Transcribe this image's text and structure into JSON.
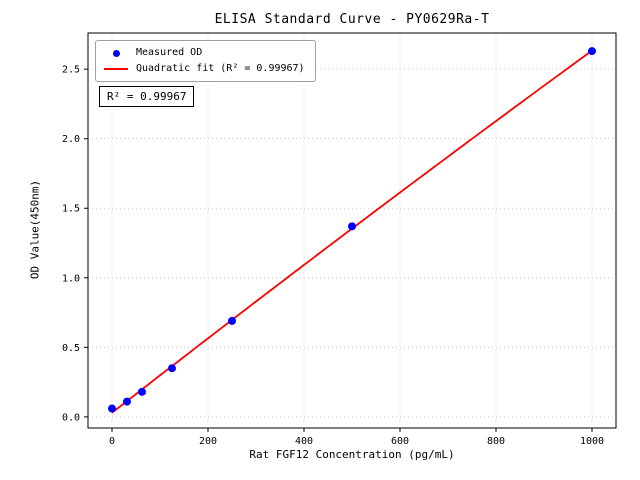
{
  "chart_data": {
    "type": "scatter",
    "title": "ELISA Standard Curve - PY0629Ra-T",
    "xlabel": "Rat FGF12 Concentration (pg/mL)",
    "ylabel": "OD Value(450nm)",
    "xlim": [
      -50,
      1050
    ],
    "ylim": [
      -0.08,
      2.76
    ],
    "xticks": [
      0,
      200,
      400,
      600,
      800,
      1000
    ],
    "yticks": [
      0,
      0.5,
      1,
      1.5,
      2,
      2.5
    ],
    "grid": true,
    "legend_position": "upper left",
    "legend": [
      {
        "label": "Measured OD",
        "marker": "dot",
        "color": "#0000ff"
      },
      {
        "label": "Quadratic fit (R² = 0.99967)",
        "marker": "line",
        "color": "#ff0000"
      }
    ],
    "annotation": "R² = 0.99967",
    "r_squared": 0.99967,
    "series": [
      {
        "name": "Measured OD",
        "type": "scatter",
        "color": "#0000ff",
        "x": [
          0,
          31.25,
          62.5,
          125,
          250,
          500,
          1000
        ],
        "y": [
          0.06,
          0.11,
          0.18,
          0.35,
          0.69,
          1.37,
          2.63
        ]
      },
      {
        "name": "Quadratic fit",
        "type": "line",
        "fit": "quadratic",
        "color": "#ff0000"
      }
    ]
  }
}
